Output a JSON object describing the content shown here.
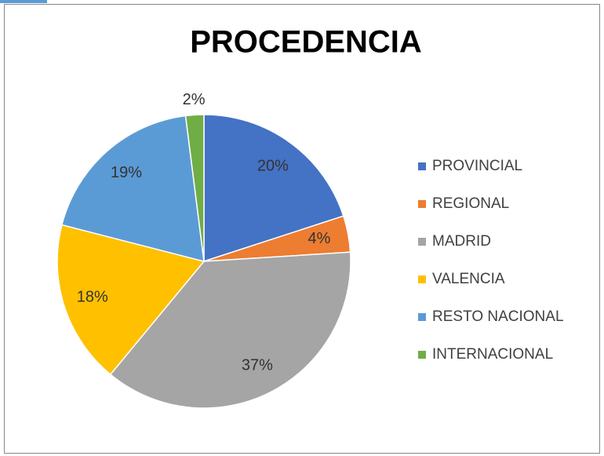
{
  "chart_data": {
    "type": "pie",
    "title": "PROCEDENCIA",
    "categories": [
      "PROVINCIAL",
      "REGIONAL",
      "MADRID",
      "VALENCIA",
      "RESTO NACIONAL",
      "INTERNACIONAL"
    ],
    "values": [
      20,
      4,
      37,
      18,
      19,
      2
    ],
    "value_labels": [
      "20%",
      "4%",
      "37%",
      "18%",
      "19%",
      "2%"
    ],
    "colors": [
      "#4472c4",
      "#ed7d31",
      "#a5a5a5",
      "#ffc000",
      "#5b9bd5",
      "#70ad47"
    ],
    "legend": "right"
  }
}
